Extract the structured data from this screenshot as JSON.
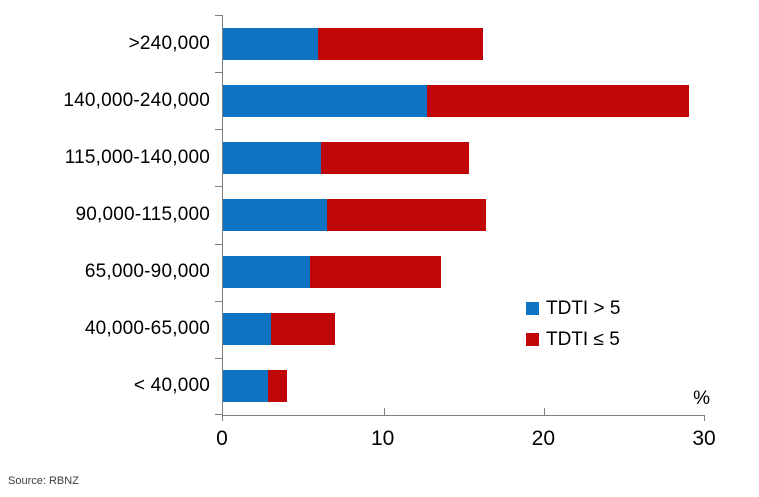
{
  "chart_data": {
    "type": "bar",
    "orientation": "horizontal-stacked",
    "categories": [
      ">240,000",
      "140,000-240,000",
      "115,000-140,000",
      "90,000-115,000",
      "65,000-90,000",
      "40,000-65,000",
      "< 40,000"
    ],
    "series": [
      {
        "name": "TDTI > 5",
        "color": "#0d73c2",
        "values": [
          5.9,
          12.7,
          6.1,
          6.5,
          5.4,
          3.0,
          2.8
        ]
      },
      {
        "name": "TDTI ≤ 5",
        "color": "#c00606",
        "values": [
          10.3,
          16.3,
          9.2,
          9.9,
          8.2,
          4.0,
          1.2
        ]
      }
    ],
    "title": "",
    "xlabel": "%",
    "ylabel": "",
    "xlim": [
      0,
      30
    ],
    "x_ticks": [
      0,
      10,
      20,
      30
    ],
    "grid": false,
    "legend_position": "inside-right"
  },
  "source_note": "Source: RBNZ",
  "colors": {
    "axis": "#7f7f7f",
    "text": "#000000",
    "source_text": "#3d3d3d",
    "background": "#ffffff"
  }
}
